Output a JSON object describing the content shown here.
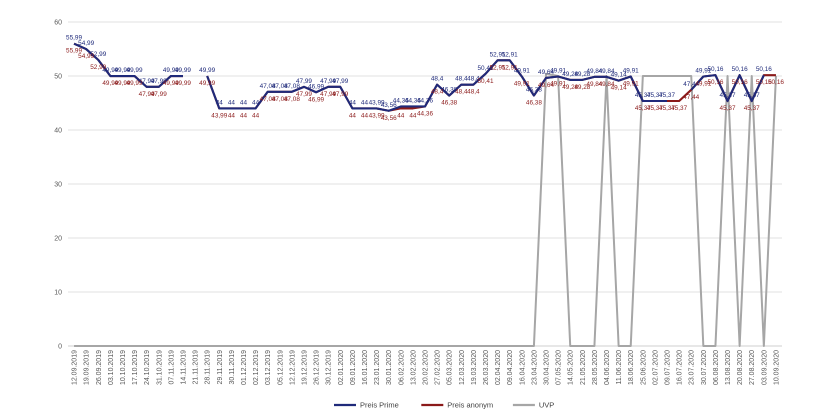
{
  "chart_data": {
    "type": "line",
    "title": "",
    "xlabel": "",
    "ylabel": "",
    "ylim": [
      0,
      60
    ],
    "yticks": [
      0,
      10,
      20,
      30,
      40,
      50,
      60
    ],
    "ytick_labels": [
      "0",
      "10",
      "20",
      "30",
      "40",
      "50",
      "60"
    ],
    "grid": "horizontal",
    "legend_position": "bottom",
    "categories": [
      "12.09.2019",
      "19.09.2019",
      "26.09.2019",
      "03.10.2019",
      "10.10.2019",
      "17.10.2019",
      "24.10.2019",
      "31.10.2019",
      "07.11.2019",
      "14.11.2019",
      "21.11.2019",
      "28.11.2019",
      "29.11.2019",
      "30.11.2019",
      "01.12.2019",
      "02.12.2019",
      "03.12.2019",
      "05.12.2019",
      "12.12.2019",
      "19.12.2019",
      "26.12.2019",
      "30.12.2019",
      "02.01.2020",
      "09.01.2020",
      "16.01.2020",
      "23.01.2020",
      "30.01.2020",
      "06.02.2020",
      "13.02.2020",
      "20.02.2020",
      "27.02.2020",
      "05.03.2020",
      "12.03.2020",
      "19.03.2020",
      "26.03.2020",
      "02.04.2020",
      "09.04.2020",
      "16.04.2020",
      "23.04.2020",
      "30.04.2020",
      "07.05.2020",
      "14.05.2020",
      "21.05.2020",
      "28.05.2020",
      "04.06.2020",
      "11.06.2020",
      "18.06.2020",
      "25.06.2020",
      "02.07.2020",
      "09.07.2020",
      "16.07.2020",
      "23.07.2020",
      "30.07.2020",
      "06.08.2020",
      "13.08.2020",
      "20.08.2020",
      "27.08.2020",
      "03.09.2020",
      "10.09.2020"
    ],
    "series": [
      {
        "name": "Preis Prime",
        "color": "#1f2a7a",
        "values": [
          55.99,
          54.99,
          52.99,
          49.99,
          49.99,
          49.99,
          47.99,
          47.99,
          49.99,
          49.99,
          null,
          49.99,
          44,
          44,
          44,
          44,
          47.08,
          47.08,
          47.08,
          47.99,
          46.99,
          47.99,
          47.99,
          44,
          44,
          43.99,
          43.56,
          44.36,
          44.36,
          44.36,
          48.4,
          46.38,
          48.4,
          48.4,
          50.41,
          52.91,
          52.91,
          49.91,
          46.38,
          49.64,
          49.91,
          49.28,
          49.28,
          49.84,
          49.84,
          49.14,
          49.91,
          45.37,
          45.37,
          45.37,
          null,
          47.44,
          49.91,
          50.16,
          45.37,
          50.16,
          45.37,
          50.16,
          null
        ],
        "labels": [
          "55,99",
          "54,99",
          "52,99",
          "49,99",
          "49,99",
          "49,99",
          "47,99",
          "47,99",
          "49,99",
          "49,99",
          "",
          "49,99",
          "44",
          "44",
          "44",
          "44",
          "47,08",
          "47,08",
          "47,08",
          "47,99",
          "46,99",
          "47,99",
          "47,99",
          "44",
          "44",
          "43,99",
          "43,56",
          "44,36",
          "44,36",
          "44,36",
          "48,4",
          "46,38",
          "48,4",
          "48,4",
          "50,41",
          "52,91",
          "52,91",
          "49,91",
          "46,38",
          "49,64",
          "49,91",
          "49,28",
          "49,28",
          "49,84",
          "49,84",
          "49,14",
          "49,91",
          "45,37",
          "45,37",
          "45,37",
          "",
          "47,44",
          "49,91",
          "50,16",
          "45,37",
          "50,16",
          "45,37",
          "50,16",
          ""
        ]
      },
      {
        "name": "Preis anonym",
        "color": "#8b1a1a",
        "values": [
          55.99,
          54.99,
          52.99,
          49.99,
          49.99,
          49.99,
          47.99,
          47.99,
          49.99,
          49.99,
          null,
          49.99,
          43.99,
          44,
          44,
          44,
          47.08,
          47.08,
          47.08,
          47.99,
          46.99,
          47.99,
          47.99,
          44,
          44,
          43.99,
          43.56,
          44,
          44,
          44.36,
          48.4,
          46.38,
          48.4,
          48.4,
          50.41,
          52.91,
          52.91,
          49.91,
          46.38,
          49.64,
          49.91,
          49.28,
          49.28,
          49.84,
          49.84,
          49.14,
          49.91,
          45.37,
          45.37,
          45.37,
          45.37,
          47.44,
          49.91,
          50.16,
          45.37,
          50.16,
          45.37,
          50.16,
          50.16
        ],
        "labels": [
          "55,99",
          "54,99",
          "52,99",
          "49,99",
          "49,99",
          "49,99",
          "47,99",
          "47,99",
          "49,99",
          "49,99",
          "",
          "49,99",
          "43,99",
          "44",
          "44",
          "44",
          "47,08",
          "47,08",
          "47,08",
          "47,99",
          "46,99",
          "47,99",
          "47,99",
          "44",
          "44",
          "43,99",
          "43,56",
          "44",
          "44",
          "44,36",
          "48,4",
          "46,38",
          "48,4",
          "48,4",
          "50,41",
          "52,91",
          "52,91",
          "49,91",
          "46,38",
          "49,64",
          "49,91",
          "49,28",
          "49,28",
          "49,84",
          "49,84",
          "49,14",
          "49,91",
          "45,37",
          "45,37",
          "45,37",
          "45,37",
          "47,44",
          "49,91",
          "50,16",
          "45,37",
          "50,16",
          "45,37",
          "50,16",
          "50,16"
        ]
      },
      {
        "name": "UVP",
        "color": "#a6a6a6",
        "values": [
          0,
          0,
          0,
          0,
          0,
          0,
          0,
          0,
          0,
          0,
          0,
          0,
          0,
          0,
          0,
          0,
          0,
          0,
          0,
          0,
          0,
          0,
          0,
          0,
          0,
          0,
          0,
          0,
          0,
          0,
          0,
          0,
          0,
          0,
          0,
          0,
          0,
          0,
          0,
          50.41,
          50,
          0,
          0,
          0,
          50,
          0,
          0,
          50,
          50,
          50,
          50,
          50,
          0,
          0,
          50,
          0,
          50,
          0,
          50
        ]
      }
    ]
  }
}
